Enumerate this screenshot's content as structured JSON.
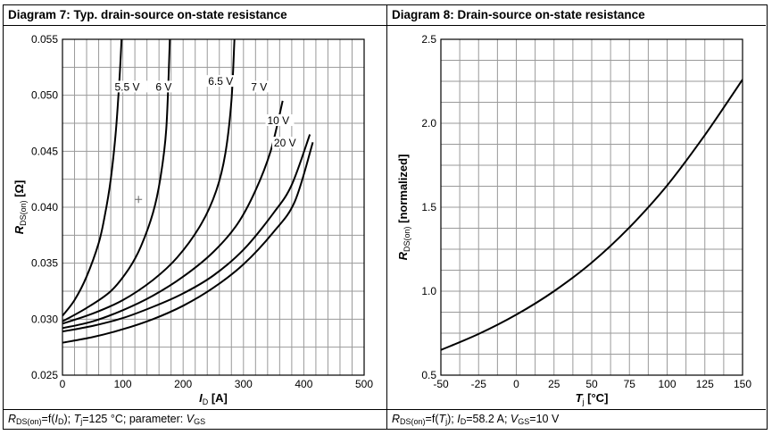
{
  "diagram7": {
    "title": "Diagram 7: Typ. drain-source on-state resistance",
    "caption": {
      "p1": "R",
      "s1": "DS(on)",
      "p2": "=f(",
      "p3": "I",
      "s2": "D",
      "p4": "); ",
      "p5": "T",
      "s3": "j",
      "p6": "=125 °C; parameter: ",
      "p7": "V",
      "s4": "GS"
    }
  },
  "diagram8": {
    "title": "Diagram 8: Drain-source on-state resistance",
    "caption": {
      "p1": "R",
      "s1": "DS(on)",
      "p2": "=f(",
      "p3": "T",
      "s2": "j",
      "p4": "); ",
      "p5": "I",
      "s3": "D",
      "p6": "=58.2 A; ",
      "p7": "V",
      "s4": "GS",
      "p8": "=10 V"
    }
  },
  "chart_data": [
    {
      "type": "line",
      "title": "Diagram 7: Typ. drain-source on-state resistance",
      "xlabel_main": "I",
      "xlabel_sub": "D",
      "xlabel_unit": "[A]",
      "ylabel_main": "R",
      "ylabel_sub": "DS(on)",
      "ylabel_unit": "[Ω]",
      "xlim": [
        0,
        500
      ],
      "ylim": [
        0.025,
        0.055
      ],
      "xticks": [
        0,
        100,
        200,
        300,
        400,
        500
      ],
      "xtick_labels": [
        "0",
        "100",
        "200",
        "300",
        "400",
        "500"
      ],
      "yticks": [
        0.025,
        0.03,
        0.035,
        0.04,
        0.045,
        0.05,
        0.055
      ],
      "ytick_labels": [
        "0.025",
        "0.030",
        "0.035",
        "0.040",
        "0.045",
        "0.050",
        "0.055"
      ],
      "x_minor_step": 20,
      "y_minor_step": 0.0025,
      "grid": true,
      "series": [
        {
          "name": "5.5 V",
          "x": [
            0,
            20,
            40,
            60,
            70,
            80,
            88,
            94,
            98
          ],
          "y": [
            0.0303,
            0.0317,
            0.0338,
            0.0368,
            0.0392,
            0.0425,
            0.0465,
            0.051,
            0.055
          ]
        },
        {
          "name": "6 V",
          "x": [
            0,
            40,
            80,
            110,
            130,
            150,
            162,
            172,
            178
          ],
          "y": [
            0.0298,
            0.031,
            0.0325,
            0.0345,
            0.0365,
            0.0395,
            0.0425,
            0.047,
            0.055
          ]
        },
        {
          "name": "6.5 V",
          "x": [
            0,
            50,
            100,
            150,
            190,
            230,
            255,
            270,
            280,
            285
          ],
          "y": [
            0.0296,
            0.0305,
            0.0317,
            0.0335,
            0.0355,
            0.0385,
            0.0415,
            0.0448,
            0.0495,
            0.055
          ]
        },
        {
          "name": "7 V",
          "x": [
            0,
            50,
            100,
            150,
            200,
            250,
            290,
            320,
            345,
            365
          ],
          "y": [
            0.0292,
            0.0298,
            0.0308,
            0.0321,
            0.0338,
            0.036,
            0.0385,
            0.0415,
            0.045,
            0.0495
          ]
        },
        {
          "name": "10 V",
          "x": [
            0,
            50,
            100,
            150,
            200,
            250,
            300,
            350,
            380,
            410
          ],
          "y": [
            0.0289,
            0.0294,
            0.0301,
            0.0311,
            0.0323,
            0.0339,
            0.0362,
            0.0395,
            0.042,
            0.0465
          ]
        },
        {
          "name": "20 V",
          "x": [
            0,
            50,
            100,
            150,
            200,
            250,
            300,
            350,
            385,
            415
          ],
          "y": [
            0.0279,
            0.0284,
            0.0291,
            0.03,
            0.0312,
            0.0328,
            0.0349,
            0.0378,
            0.0405,
            0.0458
          ]
        }
      ],
      "annotations": [
        "5.5 V",
        "6 V",
        "6.5 V",
        "7 V",
        "10 V",
        "20 V"
      ]
    },
    {
      "type": "line",
      "title": "Diagram 8: Drain-source on-state resistance",
      "xlabel_main": "T",
      "xlabel_sub": "j",
      "xlabel_unit": "[°C]",
      "ylabel_main": "R",
      "ylabel_sub": "DS(on)",
      "ylabel_unit": "[normalized]",
      "xlim": [
        -50,
        150
      ],
      "ylim": [
        0.5,
        2.5
      ],
      "xticks": [
        -50,
        -25,
        0,
        25,
        50,
        75,
        100,
        125,
        150
      ],
      "xtick_labels": [
        "-50",
        "-25",
        "0",
        "25",
        "50",
        "75",
        "100",
        "125",
        "150"
      ],
      "yticks": [
        0.5,
        1.0,
        1.5,
        2.0,
        2.5
      ],
      "ytick_labels": [
        "0.5",
        "1.0",
        "1.5",
        "2.0",
        "2.5"
      ],
      "x_minor_step": 12.5,
      "y_minor_step": 0.125,
      "grid": true,
      "series": [
        {
          "name": "RDS(on) normalized",
          "x": [
            -50,
            -25,
            0,
            25,
            50,
            75,
            100,
            125,
            150
          ],
          "y": [
            0.65,
            0.745,
            0.86,
            1.0,
            1.17,
            1.38,
            1.63,
            1.93,
            2.26
          ]
        }
      ]
    }
  ]
}
